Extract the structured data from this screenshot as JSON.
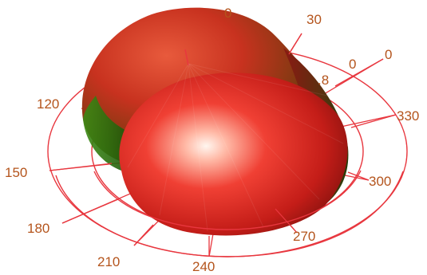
{
  "figure": {
    "angle_labels": {
      "a0": "0",
      "a30": "30",
      "a120": "120",
      "a150": "150",
      "a180": "180",
      "a210": "210",
      "a240": "240",
      "a270": "270",
      "a300": "300",
      "a330": "330",
      "inner0": "0",
      "inner8": ".8",
      "partial_top": "0"
    },
    "colors": {
      "grid": "#e8373f",
      "label": "#b4541c",
      "surface_red": "#e8282a",
      "surface_green": "#2e7d12",
      "highlight": "#fff4ec"
    }
  }
}
